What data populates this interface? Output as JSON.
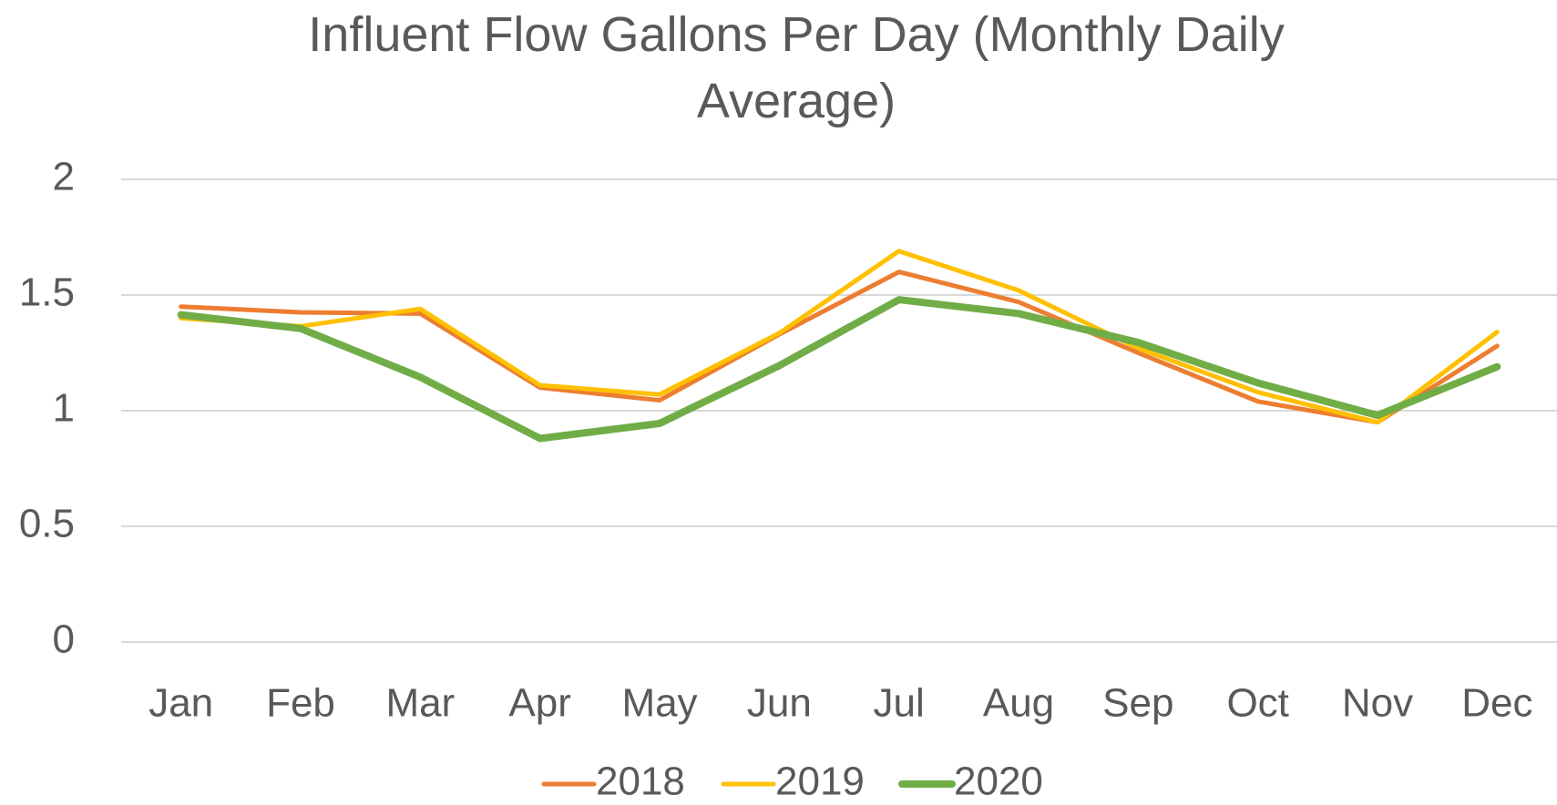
{
  "chart_data": {
    "type": "line",
    "title": "Influent Flow Gallons Per Day (Monthly Daily Average)",
    "categories": [
      "Jan",
      "Feb",
      "Mar",
      "Apr",
      "May",
      "Jun",
      "Jul",
      "Aug",
      "Sep",
      "Oct",
      "Nov",
      "Dec"
    ],
    "series": [
      {
        "name": "2018",
        "color": "#ed7d31",
        "values": [
          1.45,
          1.425,
          1.42,
          1.1,
          1.045,
          1.33,
          1.6,
          1.47,
          1.25,
          1.04,
          0.95,
          1.28
        ]
      },
      {
        "name": "2019",
        "color": "#ffc000",
        "values": [
          1.4,
          1.365,
          1.44,
          1.11,
          1.07,
          1.335,
          1.69,
          1.52,
          1.27,
          1.08,
          0.95,
          1.34
        ]
      },
      {
        "name": "2020",
        "color": "#70ad47",
        "values": [
          1.415,
          1.355,
          1.145,
          0.88,
          0.945,
          1.195,
          1.48,
          1.42,
          1.295,
          1.12,
          0.98,
          1.19
        ]
      }
    ],
    "ylim": [
      0,
      2
    ],
    "yticks": [
      0,
      0.5,
      1,
      1.5,
      2
    ],
    "grid": true,
    "legend": "bottom"
  }
}
